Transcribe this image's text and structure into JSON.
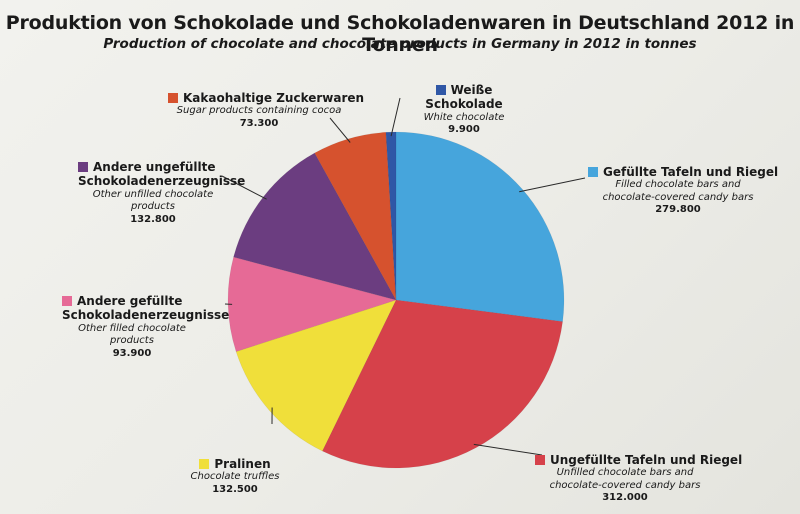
{
  "title": "Produktion von Schokolade und Schokoladenwaren in Deutschland 2012 in Tonnen",
  "subtitle": "Production of chocolate and chocolate products in Germany in 2012 in tonnes",
  "chart_data": {
    "type": "pie",
    "title": "Produktion von Schokolade und Schokoladenwaren in Deutschland 2012 in Tonnen",
    "subtitle": "Production of chocolate and chocolate products in Germany in 2012 in tonnes",
    "start_angle_deg": 0,
    "direction": "clockwise",
    "slices": [
      {
        "label": "Gefüllte Tafeln und Riegel",
        "label_en": "Filled chocolate bars and chocolate-covered candy bars",
        "value": 279800,
        "value_text": "279.800",
        "color": "#46a5dc"
      },
      {
        "label": "Ungefüllte Tafeln und Riegel",
        "label_en": "Unfilled chocolate bars and chocolate-covered candy bars",
        "value": 312000,
        "value_text": "312.000",
        "color": "#d6414a"
      },
      {
        "label": "Pralinen",
        "label_en": "Chocolate truffles",
        "value": 132500,
        "value_text": "132.500",
        "color": "#f0df3a"
      },
      {
        "label": "Andere gefüllte Schokoladenerzeugnisse",
        "label_en": "Other filled chocolate products",
        "value": 93900,
        "value_text": "93.900",
        "color": "#e66a96"
      },
      {
        "label": "Andere ungefüllte Schokoladenerzeugnisse",
        "label_en": "Other unfilled chocolate products",
        "value": 132800,
        "value_text": "132.800",
        "color": "#6b3d80"
      },
      {
        "label": "Kakaohaltige Zuckerwaren",
        "label_en": "Sugar products containing cocoa",
        "value": 73300,
        "value_text": "73.300",
        "color": "#d6522e"
      },
      {
        "label": "Weiße Schokolade",
        "label_en": "White chocolate",
        "value": 9900,
        "value_text": "9.900",
        "color": "#2f57a6"
      }
    ]
  }
}
